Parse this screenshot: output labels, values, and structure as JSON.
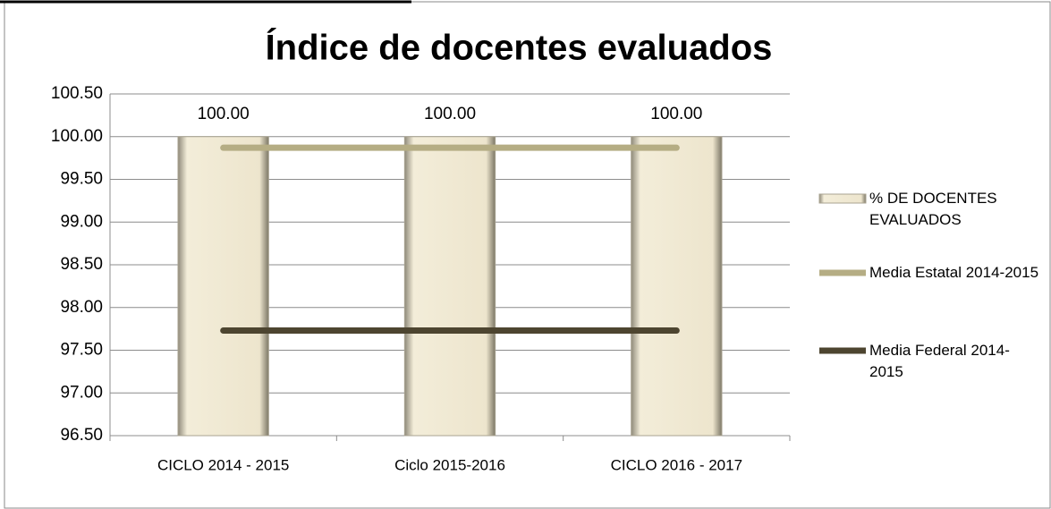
{
  "chart_data": {
    "type": "bar",
    "title": "Índice de docentes evaluados",
    "categories": [
      "CICLO 2014 - 2015",
      "Ciclo 2015-2016",
      "CICLO 2016 - 2017"
    ],
    "series": [
      {
        "name": "% DE DOCENTES EVALUADOS",
        "type": "bar",
        "color": "#ede5cd",
        "values": [
          100,
          100,
          100
        ],
        "value_labels": [
          "100.00",
          "100.00",
          "100.00"
        ]
      },
      {
        "name": "Media Estatal 2014-2015",
        "type": "line",
        "color": "#b5ad84",
        "values": [
          99.87,
          99.87,
          99.87
        ]
      },
      {
        "name": "Media Federal 2014-2015",
        "type": "line",
        "color": "#4d4530",
        "values": [
          97.73,
          97.73,
          97.73
        ]
      }
    ],
    "ylim": [
      96.5,
      100.5
    ],
    "yticks": [
      {
        "value": 96.5,
        "label": "96.50"
      },
      {
        "value": 97,
        "label": "97.00"
      },
      {
        "value": 97.5,
        "label": "97.50"
      },
      {
        "value": 98,
        "label": "98.00"
      },
      {
        "value": 98.5,
        "label": "98.50"
      },
      {
        "value": 99,
        "label": "99.00"
      },
      {
        "value": 99.5,
        "label": "99.50"
      },
      {
        "value": 100,
        "label": "100.00"
      },
      {
        "value": 100.5,
        "label": "100.50"
      }
    ],
    "grid": true,
    "legend": "right"
  }
}
